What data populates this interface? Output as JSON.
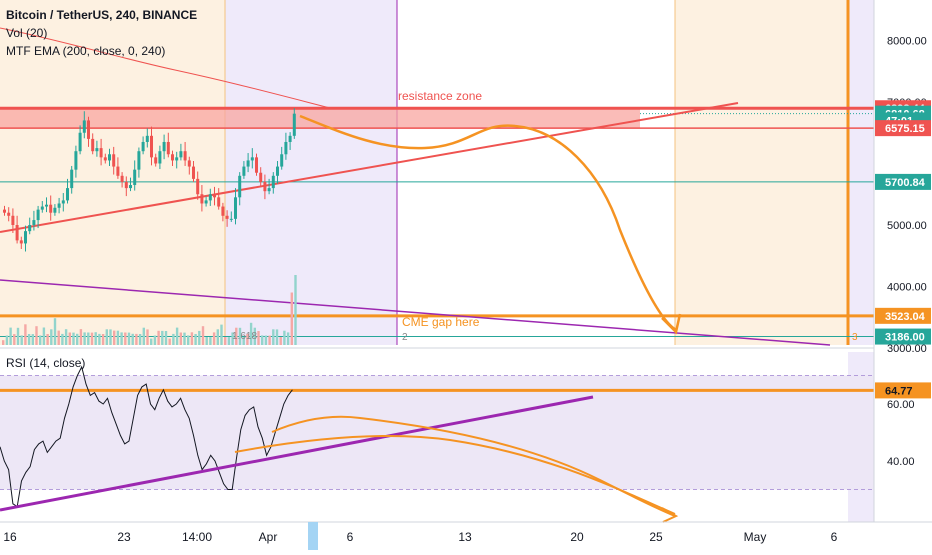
{
  "header": {
    "title": "Bitcoin / TetherUS, 240, BINANCE",
    "indicators": [
      "Vol (20)",
      "MTF EMA (200, close, 0, 240)"
    ]
  },
  "rsi_panel": {
    "title": "RSI (14, close)"
  },
  "annotations": {
    "resistance_zone": "resistance zone",
    "cme_gap": "CME gap here",
    "fib_1": "1.618",
    "fib_2": "2",
    "fib_3": "3"
  },
  "colors": {
    "candle_up": "#26a69a",
    "candle_down": "#ef5350",
    "resistance": "#ef5350",
    "forecast": "#f59322",
    "ema": "#ef5350",
    "support_line": "#26a69a",
    "purple_trend": "#9c27b0",
    "rsi_line": "#131722",
    "rsi_band": "#ede7f6",
    "shade_orange": "#fdf1e1",
    "shade_purple": "#efeafa"
  },
  "chart_data": [
    {
      "type": "candlestick",
      "title": "Bitcoin / TetherUS, 240, BINANCE",
      "y_axis_ticks": [
        8000,
        7000,
        5000,
        4000,
        3000
      ],
      "ylim": [
        2900,
        8600
      ],
      "x_tick_labels": [
        "16",
        "23",
        "14:00",
        "Apr",
        "6",
        "13",
        "20",
        "25",
        "May",
        "6"
      ],
      "price_labels": [
        {
          "value": 6898.44,
          "label": "6898.44",
          "color": "#ef5350"
        },
        {
          "value": 6810.68,
          "label": "6810.68",
          "color": "#26a69a"
        },
        {
          "value": 6700,
          "label": "47:01",
          "color": "#26a69a"
        },
        {
          "value": 6575.15,
          "label": "6575.15",
          "color": "#ef5350"
        },
        {
          "value": 5700.84,
          "label": "5700.84",
          "color": "#26a69a"
        },
        {
          "value": 3523.04,
          "label": "3523.04",
          "color": "#f59322"
        },
        {
          "value": 3186.0,
          "label": "3186.00",
          "color": "#26a69a"
        }
      ],
      "resistance_zone": {
        "low": 6575.15,
        "high": 6898.44
      },
      "horizontal_levels": [
        6898.44,
        6810.68,
        6575.15,
        5700.84,
        3523.04,
        3186.0
      ]
    },
    {
      "type": "line",
      "title": "RSI (14, close)",
      "y_axis_ticks": [
        60,
        40
      ],
      "ylim": [
        18,
        82
      ],
      "bands": [
        70,
        30
      ],
      "level_label": {
        "value": 64.77,
        "label": "64.77"
      },
      "values": [
        45,
        40,
        37,
        25,
        24,
        33,
        36,
        38,
        44,
        46,
        47,
        43,
        45,
        47,
        48,
        55,
        60,
        66,
        70,
        73,
        67,
        63,
        64,
        61,
        60,
        62,
        57,
        53,
        49,
        46,
        47,
        55,
        63,
        66,
        67,
        60,
        58,
        62,
        65,
        61,
        59,
        60,
        62,
        58,
        55,
        49,
        42,
        37,
        39,
        42,
        40,
        36,
        32,
        30,
        30,
        41,
        51,
        56,
        58,
        59,
        52,
        48,
        42,
        45,
        50,
        55,
        60,
        63,
        65
      ]
    }
  ]
}
